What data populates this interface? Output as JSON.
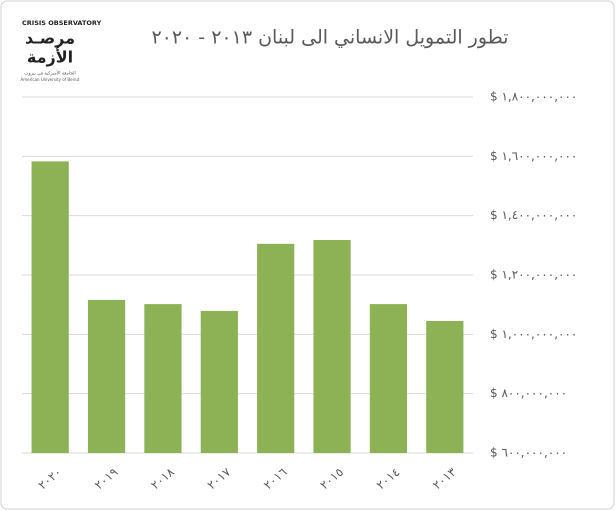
{
  "logo": {
    "english": "CRISIS OBSERVATORY",
    "arabic_line1": "مرصـد",
    "arabic_line2": "الأزمة",
    "university": "الجامعة الأميركية في بيروت",
    "university_en": "American University of Beirut"
  },
  "chart_data": {
    "type": "bar",
    "title": "تطور التمويل الانساني الى لبنان ٢٠١٣ - ٢٠٢٠",
    "categories": [
      "٢٠٢٠",
      "٢٠١٩",
      "٢٠١٨",
      "٢٠١٧",
      "٢٠١٦",
      "٢٠١٥",
      "٢٠١٤",
      "٢٠١٣"
    ],
    "values": [
      1583000000,
      1116000000,
      1102000000,
      1079000000,
      1305000000,
      1318000000,
      1102000000,
      1045000000
    ],
    "color": "#8db255",
    "ylim": [
      600000000,
      1800000000
    ],
    "yticks": [
      {
        "value": 600000000,
        "label": "$ ٦٠٠,٠٠٠,٠٠٠"
      },
      {
        "value": 800000000,
        "label": "$ ٨٠٠,٠٠٠,٠٠٠"
      },
      {
        "value": 1000000000,
        "label": "$ ١,٠٠٠,٠٠٠,٠٠٠"
      },
      {
        "value": 1200000000,
        "label": "$ ١,٢٠٠,٠٠٠,٠٠٠"
      },
      {
        "value": 1400000000,
        "label": "$ ١,٤٠٠,٠٠٠,٠٠٠"
      },
      {
        "value": 1600000000,
        "label": "$ ١,٦٠٠,٠٠٠,٠٠٠"
      },
      {
        "value": 1800000000,
        "label": "$ ١,٨٠٠,٠٠٠,٠٠٠"
      }
    ],
    "grid": true
  }
}
